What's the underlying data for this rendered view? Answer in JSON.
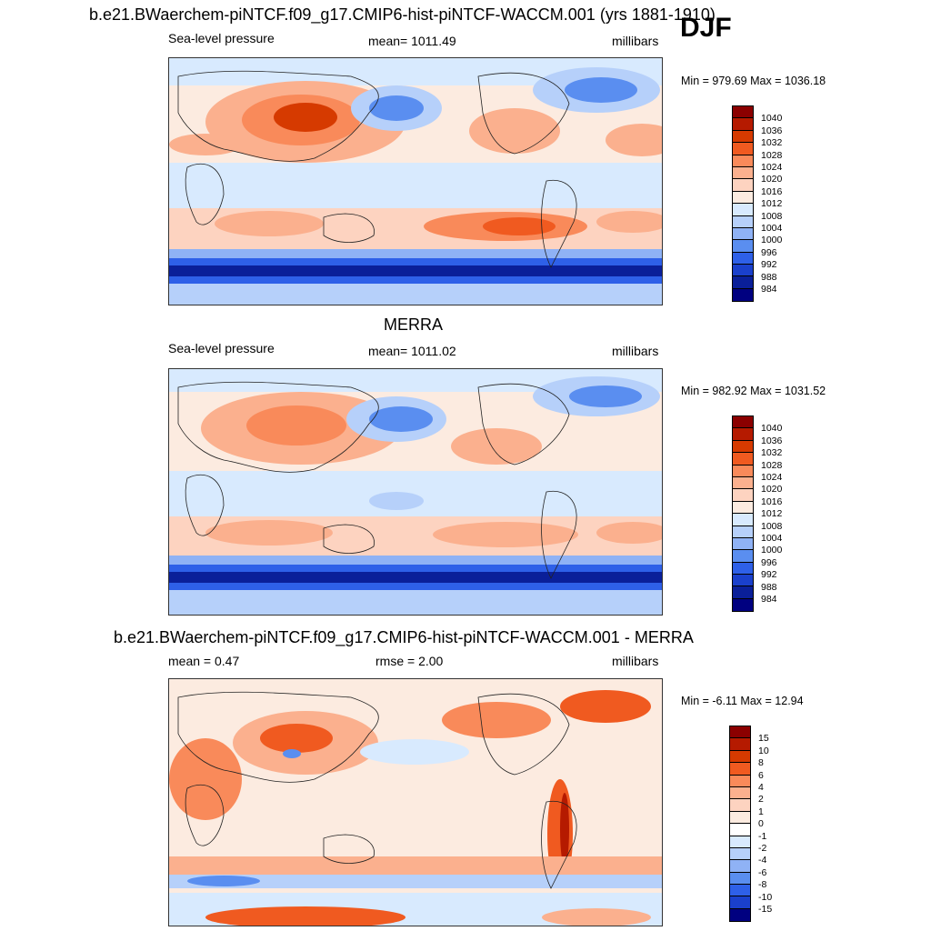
{
  "season": "DJF",
  "chart_data": [
    {
      "type": "heatmap",
      "title": "b.e21.BWaerchem-piNTCF.f09_g17.CMIP6-hist-piNTCF-WACCM.001 (yrs 1881-1910)",
      "variable": "Sea-level pressure",
      "mean_label": "mean= 1011.49",
      "units": "millibars",
      "minmax": "Min = 979.69 Max = 1036.18",
      "colorbar_levels": [
        "1040",
        "1036",
        "1032",
        "1028",
        "1024",
        "1020",
        "1016",
        "1012",
        "1008",
        "1004",
        "1000",
        "996",
        "992",
        "988",
        "984"
      ],
      "colorbar_colors": [
        "#8b0000",
        "#b51a00",
        "#d63a00",
        "#f05a20",
        "#f98a5a",
        "#fbb08e",
        "#fdd3c0",
        "#fcebe0",
        "#d8eafe",
        "#b6d0fa",
        "#8fb2f5",
        "#5a8ef0",
        "#2e60e8",
        "#1a40cc",
        "#0a1f99",
        "#000080"
      ]
    },
    {
      "type": "heatmap",
      "title": "MERRA",
      "variable": "Sea-level pressure",
      "mean_label": "mean= 1011.02",
      "units": "millibars",
      "minmax": "Min = 982.92 Max = 1031.52",
      "colorbar_levels": [
        "1040",
        "1036",
        "1032",
        "1028",
        "1024",
        "1020",
        "1016",
        "1012",
        "1008",
        "1004",
        "1000",
        "996",
        "992",
        "988",
        "984"
      ],
      "colorbar_colors": [
        "#8b0000",
        "#b51a00",
        "#d63a00",
        "#f05a20",
        "#f98a5a",
        "#fbb08e",
        "#fdd3c0",
        "#fcebe0",
        "#d8eafe",
        "#b6d0fa",
        "#8fb2f5",
        "#5a8ef0",
        "#2e60e8",
        "#1a40cc",
        "#0a1f99",
        "#000080"
      ]
    },
    {
      "type": "heatmap",
      "title": "b.e21.BWaerchem-piNTCF.f09_g17.CMIP6-hist-piNTCF-WACCM.001 - MERRA",
      "variable": "mean =   0.47",
      "mean_label": "rmse =   2.00",
      "units": "millibars",
      "minmax": "Min =  -6.11 Max =  12.94",
      "colorbar_levels": [
        "15",
        "10",
        "8",
        "6",
        "4",
        "2",
        "1",
        "0",
        "-1",
        "-2",
        "-4",
        "-6",
        "-8",
        "-10",
        "-15"
      ],
      "colorbar_colors": [
        "#8b0000",
        "#b51a00",
        "#d63a00",
        "#f05a20",
        "#f98a5a",
        "#fbb08e",
        "#fdd3c0",
        "#fcebe0",
        "#ffffff",
        "#d8eafe",
        "#b6d0fa",
        "#8fb2f5",
        "#5a8ef0",
        "#2e60e8",
        "#1a40cc",
        "#000080"
      ]
    }
  ]
}
